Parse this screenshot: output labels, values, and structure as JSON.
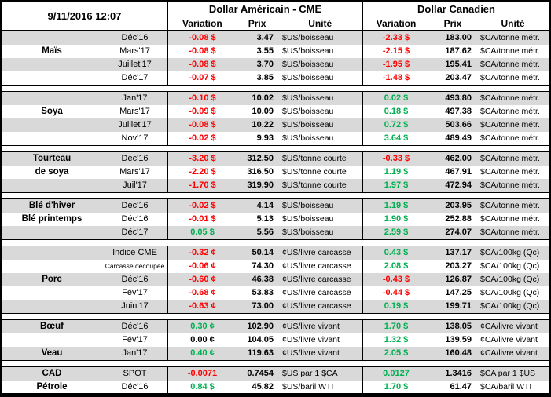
{
  "palette": {
    "negative_text": "#FF0000",
    "positive_text": "#00B050",
    "neutral_text": "#000000",
    "row_stripe": "#D9D9D9",
    "border": "#000000"
  },
  "chart_data": {
    "type": "table",
    "title": "9/11/2016 12:07",
    "sections": [
      {
        "title": "Dollar Américain - CME",
        "columns": [
          "Variation",
          "Prix",
          "Unité"
        ]
      },
      {
        "title": "Dollar Canadien",
        "columns": [
          "Variation",
          "Prix",
          "Unité"
        ]
      }
    ],
    "groups": [
      {
        "rows": [
          {
            "name": "",
            "month": "Déc'16",
            "us": {
              "variation": "-0.08 $",
              "trend": "down",
              "price": "3.47",
              "unit": "$US/boisseau"
            },
            "ca": {
              "variation": "-2.33 $",
              "trend": "down",
              "price": "183.00",
              "unit": "$CA/tonne métr."
            }
          },
          {
            "name": "Maïs",
            "month": "Mars'17",
            "us": {
              "variation": "-0.08 $",
              "trend": "down",
              "price": "3.55",
              "unit": "$US/boisseau"
            },
            "ca": {
              "variation": "-2.15 $",
              "trend": "down",
              "price": "187.62",
              "unit": "$CA/tonne métr."
            }
          },
          {
            "name": "",
            "month": "Juillet'17",
            "us": {
              "variation": "-0.08 $",
              "trend": "down",
              "price": "3.70",
              "unit": "$US/boisseau"
            },
            "ca": {
              "variation": "-1.95 $",
              "trend": "down",
              "price": "195.41",
              "unit": "$CA/tonne métr."
            }
          },
          {
            "name": "",
            "month": "Déc'17",
            "us": {
              "variation": "-0.07 $",
              "trend": "down",
              "price": "3.85",
              "unit": "$US/boisseau"
            },
            "ca": {
              "variation": "-1.48 $",
              "trend": "down",
              "price": "203.47",
              "unit": "$CA/tonne métr."
            }
          }
        ]
      },
      {
        "rows": [
          {
            "name": "",
            "month": "Jan'17",
            "us": {
              "variation": "-0.10 $",
              "trend": "down",
              "price": "10.02",
              "unit": "$US/boisseau"
            },
            "ca": {
              "variation": "0.02 $",
              "trend": "up",
              "price": "493.80",
              "unit": "$CA/tonne métr."
            }
          },
          {
            "name": "Soya",
            "month": "Mars'17",
            "us": {
              "variation": "-0.09 $",
              "trend": "down",
              "price": "10.09",
              "unit": "$US/boisseau"
            },
            "ca": {
              "variation": "0.18 $",
              "trend": "up",
              "price": "497.38",
              "unit": "$CA/tonne métr."
            }
          },
          {
            "name": "",
            "month": "Juillet'17",
            "us": {
              "variation": "-0.08 $",
              "trend": "down",
              "price": "10.22",
              "unit": "$US/boisseau"
            },
            "ca": {
              "variation": "0.72 $",
              "trend": "up",
              "price": "503.66",
              "unit": "$CA/tonne métr."
            }
          },
          {
            "name": "",
            "month": "Nov'17",
            "us": {
              "variation": "-0.02 $",
              "trend": "down",
              "price": "9.93",
              "unit": "$US/boisseau"
            },
            "ca": {
              "variation": "3.64 $",
              "trend": "up",
              "price": "489.49",
              "unit": "$CA/tonne métr."
            }
          }
        ]
      },
      {
        "rows": [
          {
            "name": "Tourteau",
            "month": "Déc'16",
            "us": {
              "variation": "-3.20 $",
              "trend": "down",
              "price": "312.50",
              "unit": "$US/tonne courte"
            },
            "ca": {
              "variation": "-0.33 $",
              "trend": "down",
              "price": "462.00",
              "unit": "$CA/tonne métr."
            }
          },
          {
            "name": "de soya",
            "month": "Mars'17",
            "us": {
              "variation": "-2.20 $",
              "trend": "down",
              "price": "316.50",
              "unit": "$US/tonne courte"
            },
            "ca": {
              "variation": "1.19 $",
              "trend": "up",
              "price": "467.91",
              "unit": "$CA/tonne métr."
            }
          },
          {
            "name": "",
            "month": "Juil'17",
            "us": {
              "variation": "-1.70 $",
              "trend": "down",
              "price": "319.90",
              "unit": "$US/tonne courte"
            },
            "ca": {
              "variation": "1.97 $",
              "trend": "up",
              "price": "472.94",
              "unit": "$CA/tonne métr."
            }
          }
        ]
      },
      {
        "rows": [
          {
            "name": "Blé d'hiver",
            "month": "Déc'16",
            "us": {
              "variation": "-0.02 $",
              "trend": "down",
              "price": "4.14",
              "unit": "$US/boisseau"
            },
            "ca": {
              "variation": "1.19 $",
              "trend": "up",
              "price": "203.95",
              "unit": "$CA/tonne métr."
            }
          },
          {
            "name": "Blé printemps",
            "month": "Déc'16",
            "us": {
              "variation": "-0.01 $",
              "trend": "down",
              "price": "5.13",
              "unit": "$US/boisseau"
            },
            "ca": {
              "variation": "1.90 $",
              "trend": "up",
              "price": "252.88",
              "unit": "$CA/tonne métr."
            }
          },
          {
            "name": "",
            "month": "Déc'17",
            "us": {
              "variation": "0.05 $",
              "trend": "up",
              "price": "5.56",
              "unit": "$US/boisseau"
            },
            "ca": {
              "variation": "2.59 $",
              "trend": "up",
              "price": "274.07",
              "unit": "$CA/tonne métr."
            }
          }
        ]
      },
      {
        "rows": [
          {
            "name": "",
            "month": "Indice CME",
            "us": {
              "variation": "-0.32 ¢",
              "trend": "down",
              "price": "50.14",
              "unit": "¢US/livre carcasse"
            },
            "ca": {
              "variation": "0.43 $",
              "trend": "up",
              "price": "137.17",
              "unit": "$CA/100kg (Qc)"
            }
          },
          {
            "name": "",
            "month": "Carcasse découpée",
            "small_month": true,
            "us": {
              "variation": "-0.06 ¢",
              "trend": "down",
              "price": "74.30",
              "unit": "¢US/livre carcasse"
            },
            "ca": {
              "variation": "2.08 $",
              "trend": "up",
              "price": "203.27",
              "unit": "$CA/100kg (Qc)"
            }
          },
          {
            "name": "Porc",
            "month": "Déc'16",
            "us": {
              "variation": "-0.60 ¢",
              "trend": "down",
              "price": "46.38",
              "unit": "¢US/livre carcasse"
            },
            "ca": {
              "variation": "-0.43 $",
              "trend": "down",
              "price": "126.87",
              "unit": "$CA/100kg (Qc)"
            }
          },
          {
            "name": "",
            "month": "Fév'17",
            "us": {
              "variation": "-0.68 ¢",
              "trend": "down",
              "price": "53.83",
              "unit": "¢US/livre carcasse"
            },
            "ca": {
              "variation": "-0.44 $",
              "trend": "down",
              "price": "147.25",
              "unit": "$CA/100kg (Qc)"
            }
          },
          {
            "name": "",
            "month": "Juin'17",
            "us": {
              "variation": "-0.63 ¢",
              "trend": "down",
              "price": "73.00",
              "unit": "¢US/livre carcasse"
            },
            "ca": {
              "variation": "0.19 $",
              "trend": "up",
              "price": "199.71",
              "unit": "$CA/100kg (Qc)"
            }
          }
        ]
      },
      {
        "rows": [
          {
            "name": "Bœuf",
            "month": "Déc'16",
            "us": {
              "variation": "0.30 ¢",
              "trend": "up",
              "price": "102.90",
              "unit": "¢US/livre vivant"
            },
            "ca": {
              "variation": "1.70 $",
              "trend": "up",
              "price": "138.05",
              "unit": "¢CA/livre vivant"
            }
          },
          {
            "name": "",
            "month": "Fév'17",
            "us": {
              "variation": "0.00 ¢",
              "trend": "flat",
              "price": "104.05",
              "unit": "¢US/livre vivant"
            },
            "ca": {
              "variation": "1.32 $",
              "trend": "up",
              "price": "139.59",
              "unit": "¢CA/livre vivant"
            }
          },
          {
            "name": "Veau",
            "month": "Jan'17",
            "us": {
              "variation": "0.40 ¢",
              "trend": "up",
              "price": "119.63",
              "unit": "¢US/livre vivant"
            },
            "ca": {
              "variation": "2.05 $",
              "trend": "up",
              "price": "160.48",
              "unit": "¢CA/livre vivant"
            }
          }
        ]
      },
      {
        "rows": [
          {
            "name": "CAD",
            "month": "SPOT",
            "us": {
              "variation": "-0.0071",
              "trend": "down",
              "price": "0.7454",
              "unit": "$US par 1 $CA"
            },
            "ca": {
              "variation": "0.0127",
              "trend": "up",
              "price": "1.3416",
              "unit": "$CA par 1 $US"
            }
          },
          {
            "name": "Pétrole",
            "month": "Déc'16",
            "us": {
              "variation": "0.84 $",
              "trend": "up",
              "price": "45.82",
              "unit": "$US/baril WTI"
            },
            "ca": {
              "variation": "1.70 $",
              "trend": "up",
              "price": "61.47",
              "unit": "$CA/baril WTI"
            }
          }
        ]
      }
    ]
  }
}
